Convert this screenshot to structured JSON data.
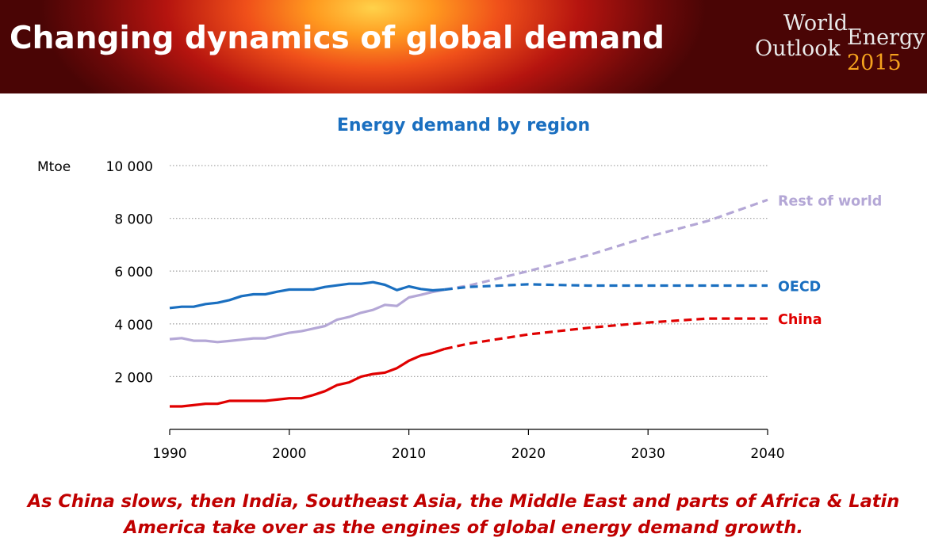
{
  "header": {
    "title": "Changing dynamics of global demand",
    "logo": {
      "line1": "World",
      "line2": "Outlook",
      "line3": "Energy",
      "year": "2015"
    }
  },
  "chart_data": {
    "type": "line",
    "title": "Energy demand by region",
    "ylabel": "Mtoe",
    "xlim": [
      1990,
      2040
    ],
    "ylim": [
      0,
      10000
    ],
    "x_ticks": [
      "1990",
      "2000",
      "2010",
      "2020",
      "2030",
      "2040"
    ],
    "y_ticks": [
      "2 000",
      "4 000",
      "6 000",
      "8 000",
      "10 000"
    ],
    "grid": "horizontal dotted",
    "projection_start": 2013,
    "series": [
      {
        "name": "Rest of world",
        "color": "#b4a7d6",
        "historical": {
          "x": [
            1990,
            1991,
            1992,
            1993,
            1994,
            1995,
            1996,
            1997,
            1998,
            1999,
            2000,
            2001,
            2002,
            2003,
            2004,
            2005,
            2006,
            2007,
            2008,
            2009,
            2010,
            2011,
            2012,
            2013
          ],
          "y": [
            3420,
            3460,
            3360,
            3360,
            3310,
            3350,
            3400,
            3450,
            3450,
            3560,
            3660,
            3720,
            3820,
            3920,
            4160,
            4260,
            4420,
            4530,
            4720,
            4680,
            5000,
            5100,
            5210,
            5300
          ]
        },
        "projection": {
          "x": [
            2013,
            2015,
            2020,
            2025,
            2030,
            2035,
            2040
          ],
          "y": [
            5300,
            5450,
            6000,
            6600,
            7300,
            7900,
            8700
          ]
        }
      },
      {
        "name": "OECD",
        "color": "#1a6fc0",
        "historical": {
          "x": [
            1990,
            1991,
            1992,
            1993,
            1994,
            1995,
            1996,
            1997,
            1998,
            1999,
            2000,
            2001,
            2002,
            2003,
            2004,
            2005,
            2006,
            2007,
            2008,
            2009,
            2010,
            2011,
            2012,
            2013
          ],
          "y": [
            4600,
            4650,
            4650,
            4750,
            4800,
            4900,
            5050,
            5120,
            5120,
            5220,
            5300,
            5300,
            5300,
            5400,
            5460,
            5520,
            5520,
            5580,
            5480,
            5280,
            5420,
            5320,
            5270,
            5300
          ]
        },
        "projection": {
          "x": [
            2013,
            2015,
            2020,
            2025,
            2030,
            2035,
            2040
          ],
          "y": [
            5300,
            5400,
            5500,
            5450,
            5450,
            5450,
            5450
          ]
        }
      },
      {
        "name": "China",
        "color": "#e00000",
        "historical": {
          "x": [
            1990,
            1991,
            1992,
            1993,
            1994,
            1995,
            1996,
            1997,
            1998,
            1999,
            2000,
            2001,
            2002,
            2003,
            2004,
            2005,
            2006,
            2007,
            2008,
            2009,
            2010,
            2011,
            2012,
            2013
          ],
          "y": [
            870,
            870,
            920,
            970,
            970,
            1080,
            1080,
            1080,
            1080,
            1130,
            1180,
            1180,
            1300,
            1450,
            1680,
            1780,
            2000,
            2100,
            2150,
            2320,
            2600,
            2800,
            2900,
            3050
          ]
        },
        "projection": {
          "x": [
            2013,
            2015,
            2020,
            2025,
            2030,
            2035,
            2040
          ],
          "y": [
            3050,
            3250,
            3600,
            3850,
            4050,
            4200,
            4200
          ]
        }
      }
    ]
  },
  "caption": {
    "line1": "As China slows, then India, Southeast Asia, the Middle East and parts of Africa & Latin",
    "line2": "America take over as the engines of global energy demand growth."
  }
}
